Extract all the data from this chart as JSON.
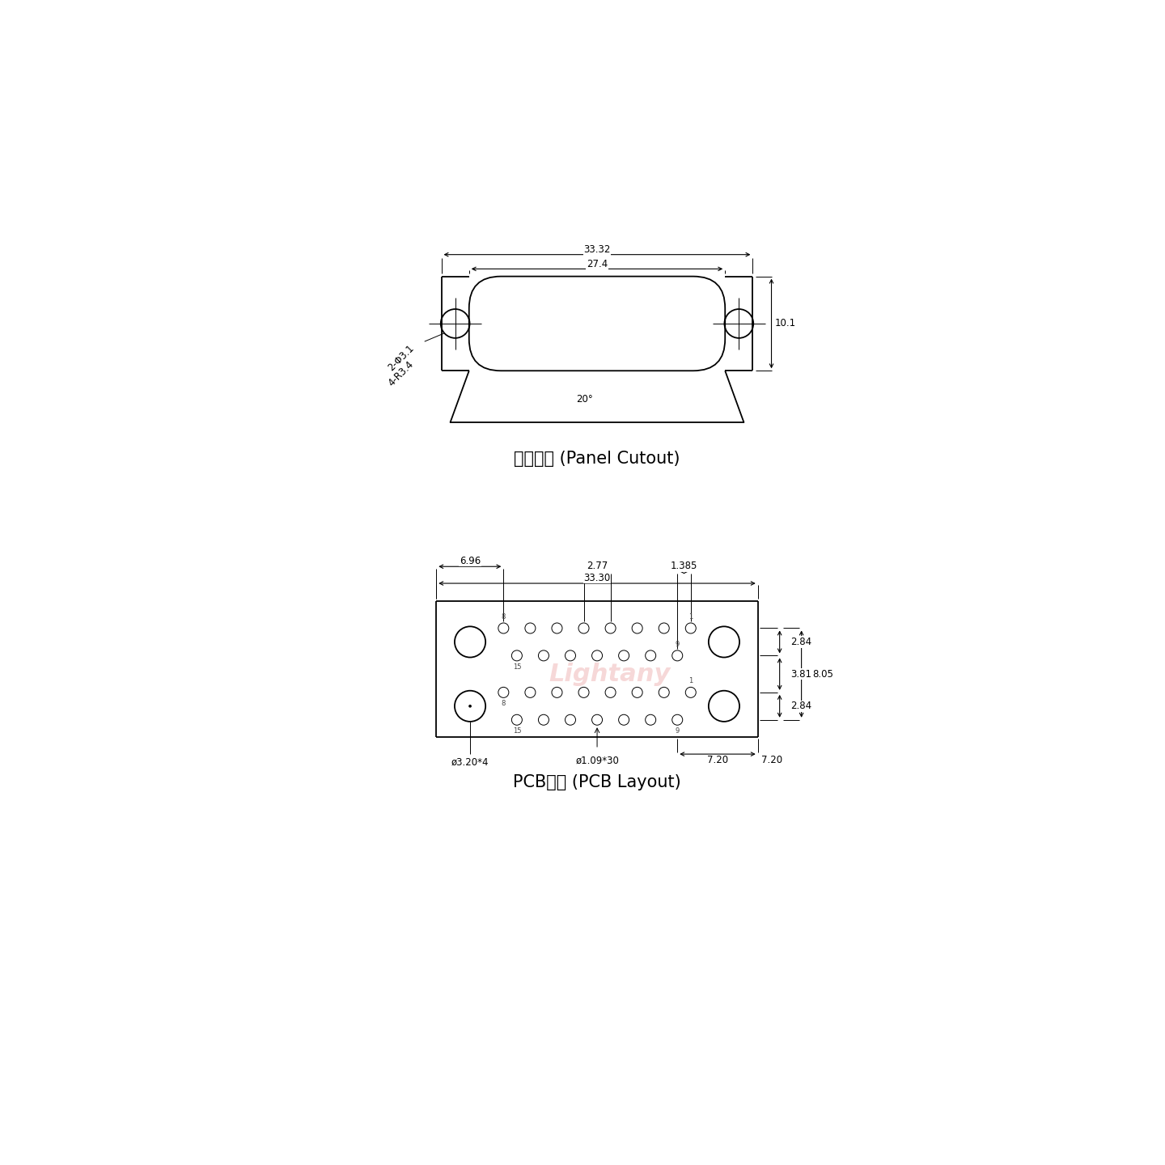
{
  "bg_color": "#ffffff",
  "line_color": "#000000",
  "watermark_color": "#f0b8b8",
  "panel_cutout_label": "面板开孔 (Panel Cutout)",
  "pcb_layout_label": "PCB布局 (PCB Layout)",
  "dim_33_32": "33.32",
  "dim_27_4": "27.4",
  "dim_10_1": "10.1",
  "dim_2_phi3_1": "2-Φ3.1",
  "dim_4_R3_4": "4-R3.4",
  "dim_20deg": "20°",
  "pcb_dim_33_30": "33.30",
  "pcb_dim_6_96": "6.96",
  "pcb_dim_2_77": "2.77",
  "pcb_dim_1_385": "1.385",
  "pcb_dim_2_84a": "2.84",
  "pcb_dim_3_81": "3.81",
  "pcb_dim_2_84b": "2.84",
  "pcb_dim_phi109x30": "ø1.09*30",
  "pcb_dim_phi320x4": "ø3.20*4",
  "pcb_dim_7_20a": "7.20",
  "pcb_dim_7_20b": "7.20",
  "pcb_dim_8_05": "8.05",
  "font_size_dim": 8.5,
  "font_size_label": 15,
  "font_size_pin": 6
}
